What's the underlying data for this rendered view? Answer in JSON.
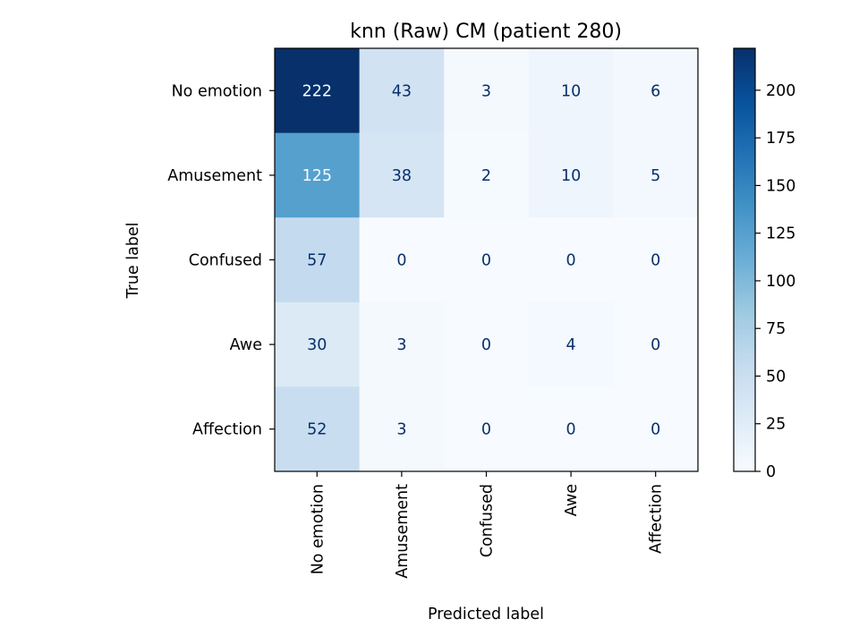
{
  "chart_data": {
    "type": "heatmap",
    "title": "knn (Raw) CM (patient 280)",
    "xlabel": "Predicted label",
    "ylabel": "True label",
    "row_labels": [
      "No emotion",
      "Amusement",
      "Confused",
      "Awe",
      "Affection"
    ],
    "col_labels": [
      "No emotion",
      "Amusement",
      "Confused",
      "Awe",
      "Affection"
    ],
    "matrix": [
      [
        222,
        43,
        3,
        10,
        6
      ],
      [
        125,
        38,
        2,
        10,
        5
      ],
      [
        57,
        0,
        0,
        0,
        0
      ],
      [
        30,
        3,
        0,
        4,
        0
      ],
      [
        52,
        3,
        0,
        0,
        0
      ]
    ],
    "colorbar": {
      "colormap": "Blues",
      "vmin": 0,
      "vmax": 222,
      "ticks": [
        0,
        25,
        50,
        75,
        100,
        125,
        150,
        175,
        200
      ],
      "tick_labels": [
        "0",
        "25",
        "50",
        "75",
        "100",
        "125",
        "150",
        "175",
        "200"
      ]
    },
    "grid": false
  }
}
